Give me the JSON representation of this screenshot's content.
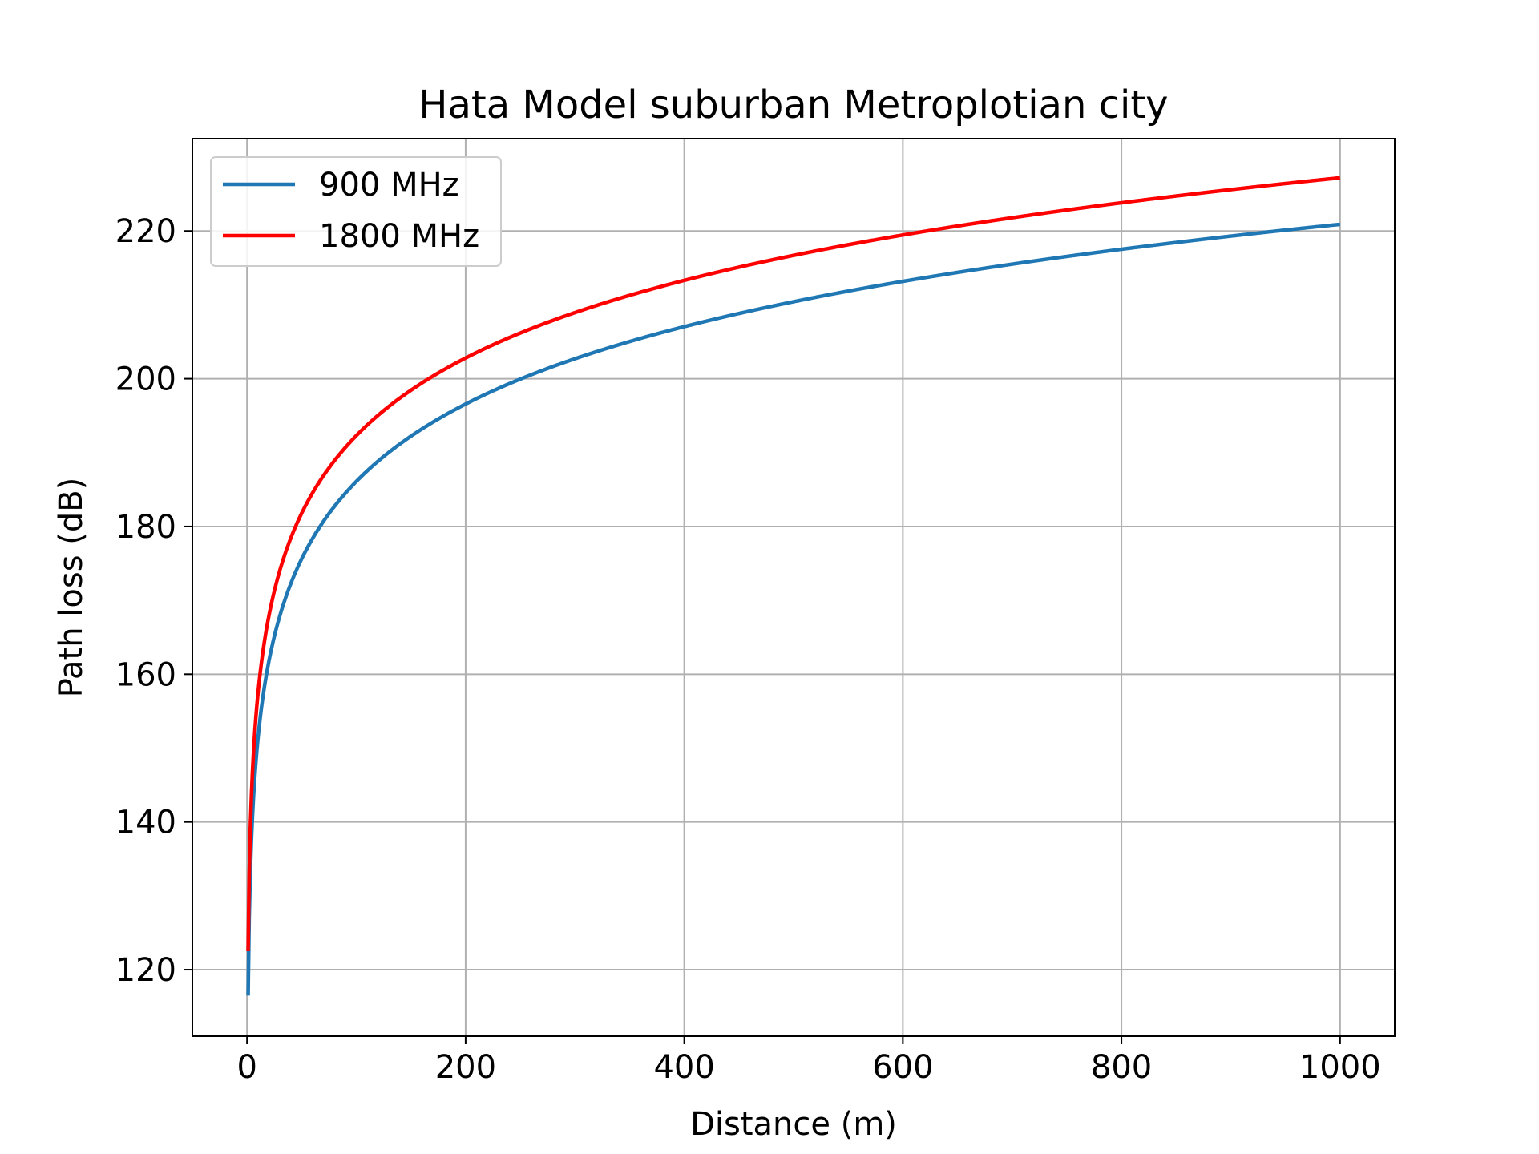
{
  "chart_data": {
    "type": "line",
    "title": "Hata Model suburban Metroplotian city",
    "xlabel": "Distance (m)",
    "ylabel": "Path loss (dB)",
    "xlim": [
      -50,
      1050
    ],
    "ylim": [
      111,
      232.5
    ],
    "xticks": [
      0,
      200,
      400,
      600,
      800,
      1000
    ],
    "yticks": [
      120,
      140,
      160,
      180,
      200,
      220
    ],
    "grid": true,
    "legend_position": "upper-left",
    "x_start": 1,
    "x_end": 1000,
    "series": [
      {
        "name": "900 MHz",
        "color": "#1f77b4",
        "model": "a + b*log10(x)",
        "a": 116.5,
        "b": 34.8
      },
      {
        "name": "1800 MHz",
        "color": "#ff0000",
        "model": "a + b*log10(x)",
        "a": 122.5,
        "b": 34.9
      }
    ]
  }
}
